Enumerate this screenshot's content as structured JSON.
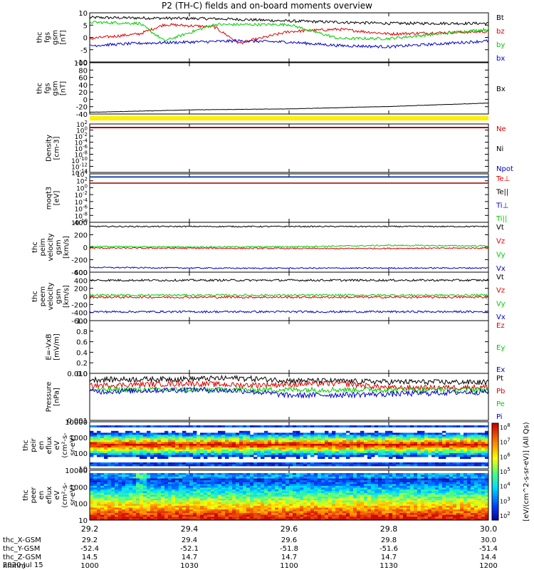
{
  "title": "P2 (TH-C) fields and on-board moments overview",
  "colors": {
    "black": "#000000",
    "red": "#e00000",
    "green": "#00cc00",
    "blue": "#0000cc",
    "yellow": "#ffee00",
    "darkred": "#990000"
  },
  "chart_data": [
    {
      "type": "line",
      "ylabel": [
        "thc",
        "fgs",
        "gsm",
        "[nT]"
      ],
      "yticks": [
        10,
        5,
        0,
        -5,
        -10
      ],
      "ylim": [
        -10,
        11
      ],
      "series": [
        {
          "name": "Bt",
          "color": "#000000",
          "x": [
            29.2,
            29.3,
            29.45,
            29.5,
            29.6,
            29.7,
            29.8,
            30.0
          ],
          "y": [
            9,
            8.8,
            8.5,
            8.2,
            7.5,
            7,
            6.5,
            6.5
          ]
        },
        {
          "name": "bz",
          "color": "#e00000",
          "x": [
            29.2,
            29.3,
            29.35,
            29.45,
            29.5,
            29.6,
            29.7,
            29.8,
            30.0
          ],
          "y": [
            0,
            2,
            6,
            5,
            -2,
            3,
            4,
            2,
            3
          ]
        },
        {
          "name": "by",
          "color": "#00cc00",
          "x": [
            29.2,
            29.3,
            29.35,
            29.45,
            29.5,
            29.6,
            29.7,
            29.8,
            30.0
          ],
          "y": [
            7,
            6.5,
            -1,
            6,
            6,
            6,
            0,
            0,
            4
          ]
        },
        {
          "name": "bx",
          "color": "#0000cc",
          "x": [
            29.2,
            29.3,
            29.5,
            29.6,
            29.7,
            29.8,
            30.0
          ],
          "y": [
            -3,
            -2,
            -1,
            -1.5,
            -3,
            -3.5,
            -1
          ]
        }
      ]
    },
    {
      "type": "line",
      "ylabel": [
        "thc",
        "fgs",
        "gsm",
        "[nT]"
      ],
      "yticks": [
        100,
        80,
        60,
        40,
        20,
        0,
        -20,
        -40
      ],
      "ylim": [
        -50,
        100
      ],
      "series": [
        {
          "name": "Bx",
          "color": "#000000",
          "x": [
            29.2,
            29.4,
            29.6,
            29.8,
            30.0
          ],
          "y": [
            -45,
            -38,
            -35,
            -28,
            -18
          ]
        }
      ]
    },
    {
      "type": "line",
      "ylabel": [
        "Density",
        "[cm-3]"
      ],
      "yticks": [
        "10^2",
        "10^0",
        "10^-2",
        "10^-4",
        "10^-6",
        "10^-8",
        "10^-10",
        "10^-12",
        "10^-14"
      ],
      "series": [
        {
          "name": "Ne",
          "color": "#e00000"
        },
        {
          "name": "Ni",
          "color": "#000000"
        },
        {
          "name": "Npot",
          "color": "#0000cc"
        }
      ]
    },
    {
      "type": "line",
      "ylabel": [
        "moqt3",
        "[eV]"
      ],
      "yticks": [
        "10^4",
        "10^2",
        "10^0",
        "10^-2",
        "10^-4",
        "10^-6",
        "10^-8",
        "10^-10"
      ],
      "series": [
        {
          "name": "Te⊥",
          "color": "#e00000"
        },
        {
          "name": "Te||",
          "color": "#000000"
        },
        {
          "name": "Ti⊥",
          "color": "#0000cc"
        },
        {
          "name": "Ti||",
          "color": "#00cc00"
        }
      ]
    },
    {
      "type": "line",
      "ylabel": [
        "thc",
        "peim",
        "velocity",
        "gsm",
        "[km/s]"
      ],
      "yticks": [
        400,
        200,
        0,
        -200,
        -400
      ],
      "ylim": [
        -470,
        480
      ],
      "series": [
        {
          "name": "Vt",
          "color": "#000000",
          "x": [
            29.2,
            30.0
          ],
          "y": [
            400,
            400
          ]
        },
        {
          "name": "Vz",
          "color": "#e00000",
          "x": [
            29.2,
            29.5,
            29.7,
            30.0
          ],
          "y": [
            -10,
            -15,
            -20,
            -10
          ]
        },
        {
          "name": "Vy",
          "color": "#00cc00",
          "x": [
            29.2,
            29.4,
            29.6,
            29.8,
            30.0
          ],
          "y": [
            20,
            10,
            15,
            40,
            30
          ]
        },
        {
          "name": "Vx",
          "color": "#0000cc",
          "x": [
            29.2,
            29.5,
            30.0
          ],
          "y": [
            -380,
            -395,
            -390
          ]
        }
      ]
    },
    {
      "type": "line",
      "ylabel": [
        "thc",
        "peem",
        "velocity",
        "gsm",
        "[km/s]"
      ],
      "yticks": [
        600,
        400,
        200,
        0,
        -200,
        -400,
        -600
      ],
      "ylim": [
        -600,
        600
      ],
      "series": [
        {
          "name": "Vt",
          "color": "#000000",
          "x": [
            29.2,
            30.0
          ],
          "y": [
            400,
            400
          ]
        },
        {
          "name": "Vz",
          "color": "#e00000",
          "x": [
            29.2,
            30.0
          ],
          "y": [
            -20,
            -20
          ]
        },
        {
          "name": "Vy",
          "color": "#00cc00",
          "x": [
            29.2,
            30.0
          ],
          "y": [
            30,
            30
          ]
        },
        {
          "name": "Vx",
          "color": "#0000cc",
          "x": [
            29.2,
            30.0
          ],
          "y": [
            -380,
            -380
          ]
        }
      ]
    },
    {
      "type": "line",
      "ylabel": [
        "E=-VxB",
        "[mV/m]"
      ],
      "yticks": [
        "1.0",
        "0.8",
        "0.6",
        "0.4",
        "0.2",
        "0.0"
      ],
      "ylim": [
        -0.05,
        1.0
      ],
      "series": [
        {
          "name": "Ez",
          "color": "#e00000"
        },
        {
          "name": "Ey",
          "color": "#00cc00"
        },
        {
          "name": "Ex",
          "color": "#0000cc"
        }
      ]
    },
    {
      "type": "line",
      "ylabel": [
        "Pressure",
        "[nPa]"
      ],
      "yticks": [
        "0.010",
        "0.001"
      ],
      "yscale": "log",
      "ylim": [
        0.001,
        0.05
      ],
      "series": [
        {
          "name": "Pt",
          "color": "#000000",
          "x": [
            29.2,
            29.4,
            29.5,
            29.6,
            29.8,
            30.0
          ],
          "y": [
            0.03,
            0.032,
            0.034,
            0.028,
            0.025,
            0.024
          ]
        },
        {
          "name": "Pb",
          "color": "#e00000",
          "x": [
            29.2,
            29.4,
            29.5,
            29.6,
            29.7,
            29.8,
            30.0
          ],
          "y": [
            0.018,
            0.022,
            0.019,
            0.02,
            0.022,
            0.015,
            0.016
          ]
        },
        {
          "name": "Pe",
          "color": "#00cc00",
          "x": [
            29.2,
            30.0
          ],
          "y": [
            0.013,
            0.013
          ]
        },
        {
          "name": "Pi",
          "color": "#0000cc",
          "x": [
            29.2,
            29.4,
            29.5,
            29.6,
            29.8,
            30.0
          ],
          "y": [
            0.011,
            0.013,
            0.012,
            0.008,
            0.009,
            0.011
          ]
        }
      ]
    },
    {
      "type": "heatmap",
      "ylabel": [
        "thc",
        "peir",
        "en",
        "eflux",
        "eV",
        "(cm²-s-",
        "sr-eV)"
      ],
      "yticks": [
        "10000",
        "1000",
        "100",
        "10"
      ],
      "yscale": "log"
    },
    {
      "type": "heatmap",
      "ylabel": [
        "thc",
        "peer",
        "en",
        "eflux",
        "eV",
        "(cm²-s-",
        "sr-eV)"
      ],
      "yticks": [
        "10000",
        "1000",
        "100",
        "10"
      ],
      "yscale": "log"
    }
  ],
  "colorbar": {
    "label": "[eV/(cm^2-s-sr-eV)] (All Qs)",
    "ticks": [
      "10^8",
      "10^7",
      "10^6",
      "10^5",
      "10^4",
      "10^3",
      "10^2"
    ]
  },
  "xaxis": {
    "ticks": [
      "29.2",
      "29.4",
      "29.6",
      "29.8",
      "30.0"
    ],
    "rows": [
      {
        "label": "thc_X-GSM",
        "values": [
          "29.2",
          "29.4",
          "29.6",
          "29.8",
          "30.0"
        ]
      },
      {
        "label": "thc_Y-GSM",
        "values": [
          "-52.4",
          "-52.1",
          "-51.8",
          "-51.6",
          "-51.4"
        ]
      },
      {
        "label": "thc_Z-GSM",
        "values": [
          "14.5",
          "14.7",
          "14.7",
          "14.7",
          "14.4"
        ]
      },
      {
        "label": "hhmm",
        "values": [
          "1000",
          "1030",
          "1100",
          "1130",
          "1200"
        ]
      }
    ],
    "date": "2020 Jul 15"
  }
}
